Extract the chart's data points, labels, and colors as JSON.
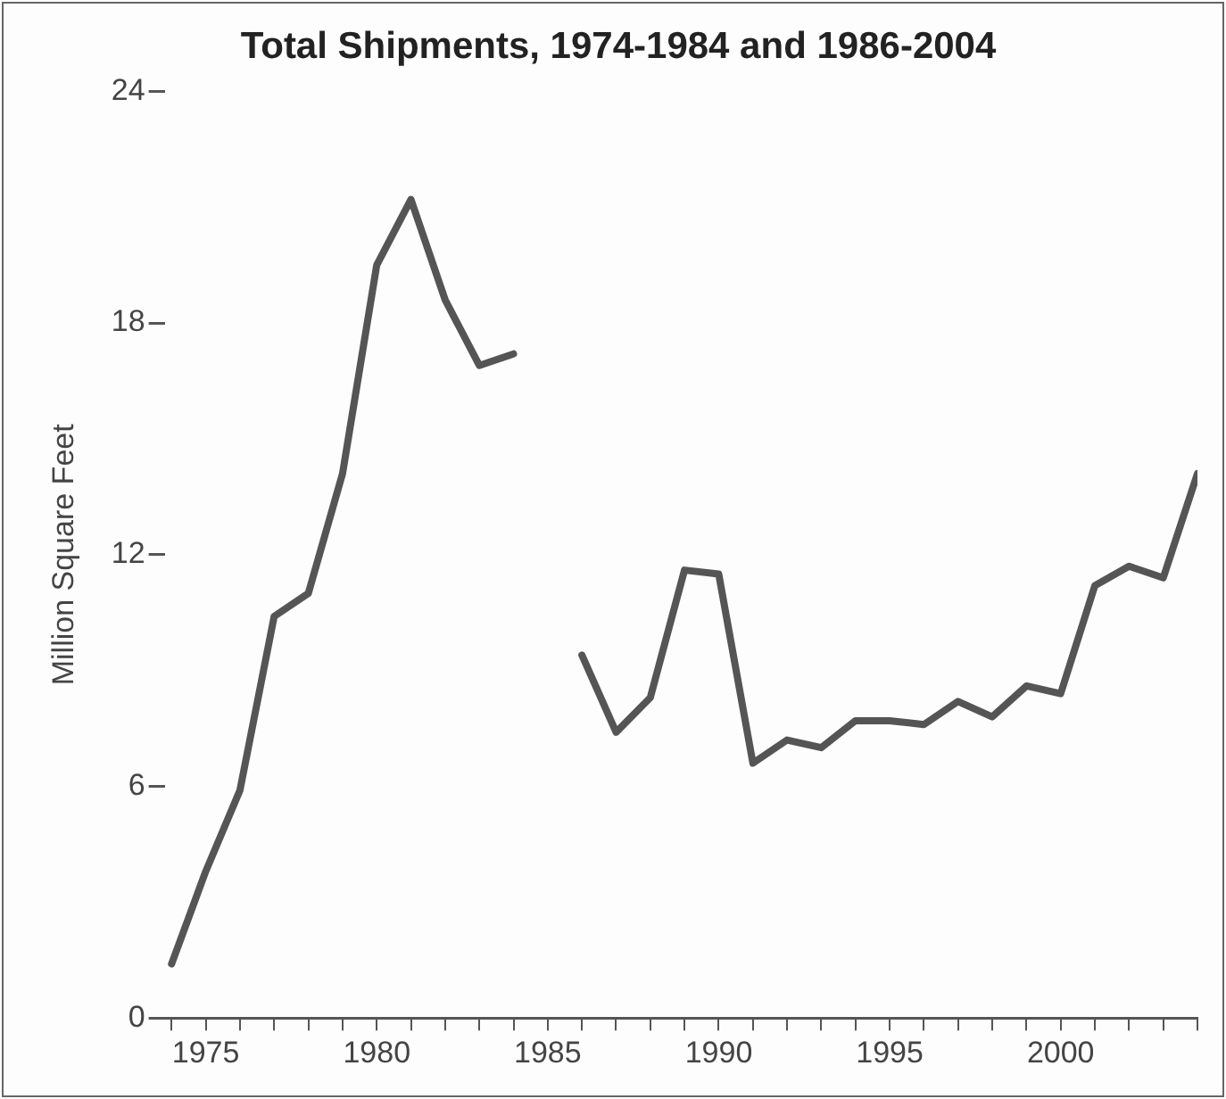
{
  "chart_data": {
    "type": "line",
    "title": "Total Shipments, 1974-1984 and 1986-2004",
    "ylabel": "Million Square Feet",
    "x": [
      1974,
      1975,
      1976,
      1977,
      1978,
      1979,
      1980,
      1981,
      1982,
      1983,
      1984,
      1985,
      1986,
      1987,
      1988,
      1989,
      1990,
      1991,
      1992,
      1993,
      1994,
      1995,
      1996,
      1997,
      1998,
      1999,
      2000,
      2001,
      2002,
      2003,
      2004
    ],
    "series": [
      {
        "color": "#555555",
        "values": [
          1.4,
          3.8,
          5.9,
          10.4,
          11.0,
          14.1,
          19.5,
          21.2,
          18.6,
          16.9,
          17.2,
          null,
          9.4,
          7.4,
          8.3,
          11.6,
          11.5,
          6.6,
          7.2,
          7.0,
          7.7,
          7.7,
          7.6,
          8.2,
          7.8,
          8.6,
          8.4,
          11.2,
          11.7,
          11.4,
          14.1
        ]
      }
    ],
    "xlim": [
      1973.8,
      2004
    ],
    "xticks": [
      {
        "value": 1974,
        "label": null
      },
      1975,
      {
        "value": 1976,
        "label": null
      },
      {
        "value": 1977,
        "label": null
      },
      {
        "value": 1978,
        "label": null
      },
      {
        "value": 1979,
        "label": null
      },
      1980,
      {
        "value": 1981,
        "label": null
      },
      {
        "value": 1982,
        "label": null
      },
      {
        "value": 1983,
        "label": null
      },
      {
        "value": 1984,
        "label": null
      },
      1985,
      {
        "value": 1986,
        "label": null
      },
      {
        "value": 1987,
        "label": null
      },
      {
        "value": 1988,
        "label": null
      },
      {
        "value": 1989,
        "label": null
      },
      1990,
      {
        "value": 1991,
        "label": null
      },
      {
        "value": 1992,
        "label": null
      },
      {
        "value": 1993,
        "label": null
      },
      {
        "value": 1994,
        "label": null
      },
      1995,
      {
        "value": 1996,
        "label": null
      },
      {
        "value": 1997,
        "label": null
      },
      {
        "value": 1998,
        "label": null
      },
      {
        "value": 1999,
        "label": null
      },
      2000,
      {
        "value": 2001,
        "label": null
      },
      {
        "value": 2002,
        "label": null
      },
      {
        "value": 2003,
        "label": null
      },
      {
        "value": 2004,
        "label": null
      }
    ],
    "ylim": [
      0,
      24
    ],
    "yticks": [
      0,
      6,
      12,
      18,
      24
    ],
    "grid": false,
    "legend": false,
    "marker": "none",
    "line_style": "solid"
  }
}
